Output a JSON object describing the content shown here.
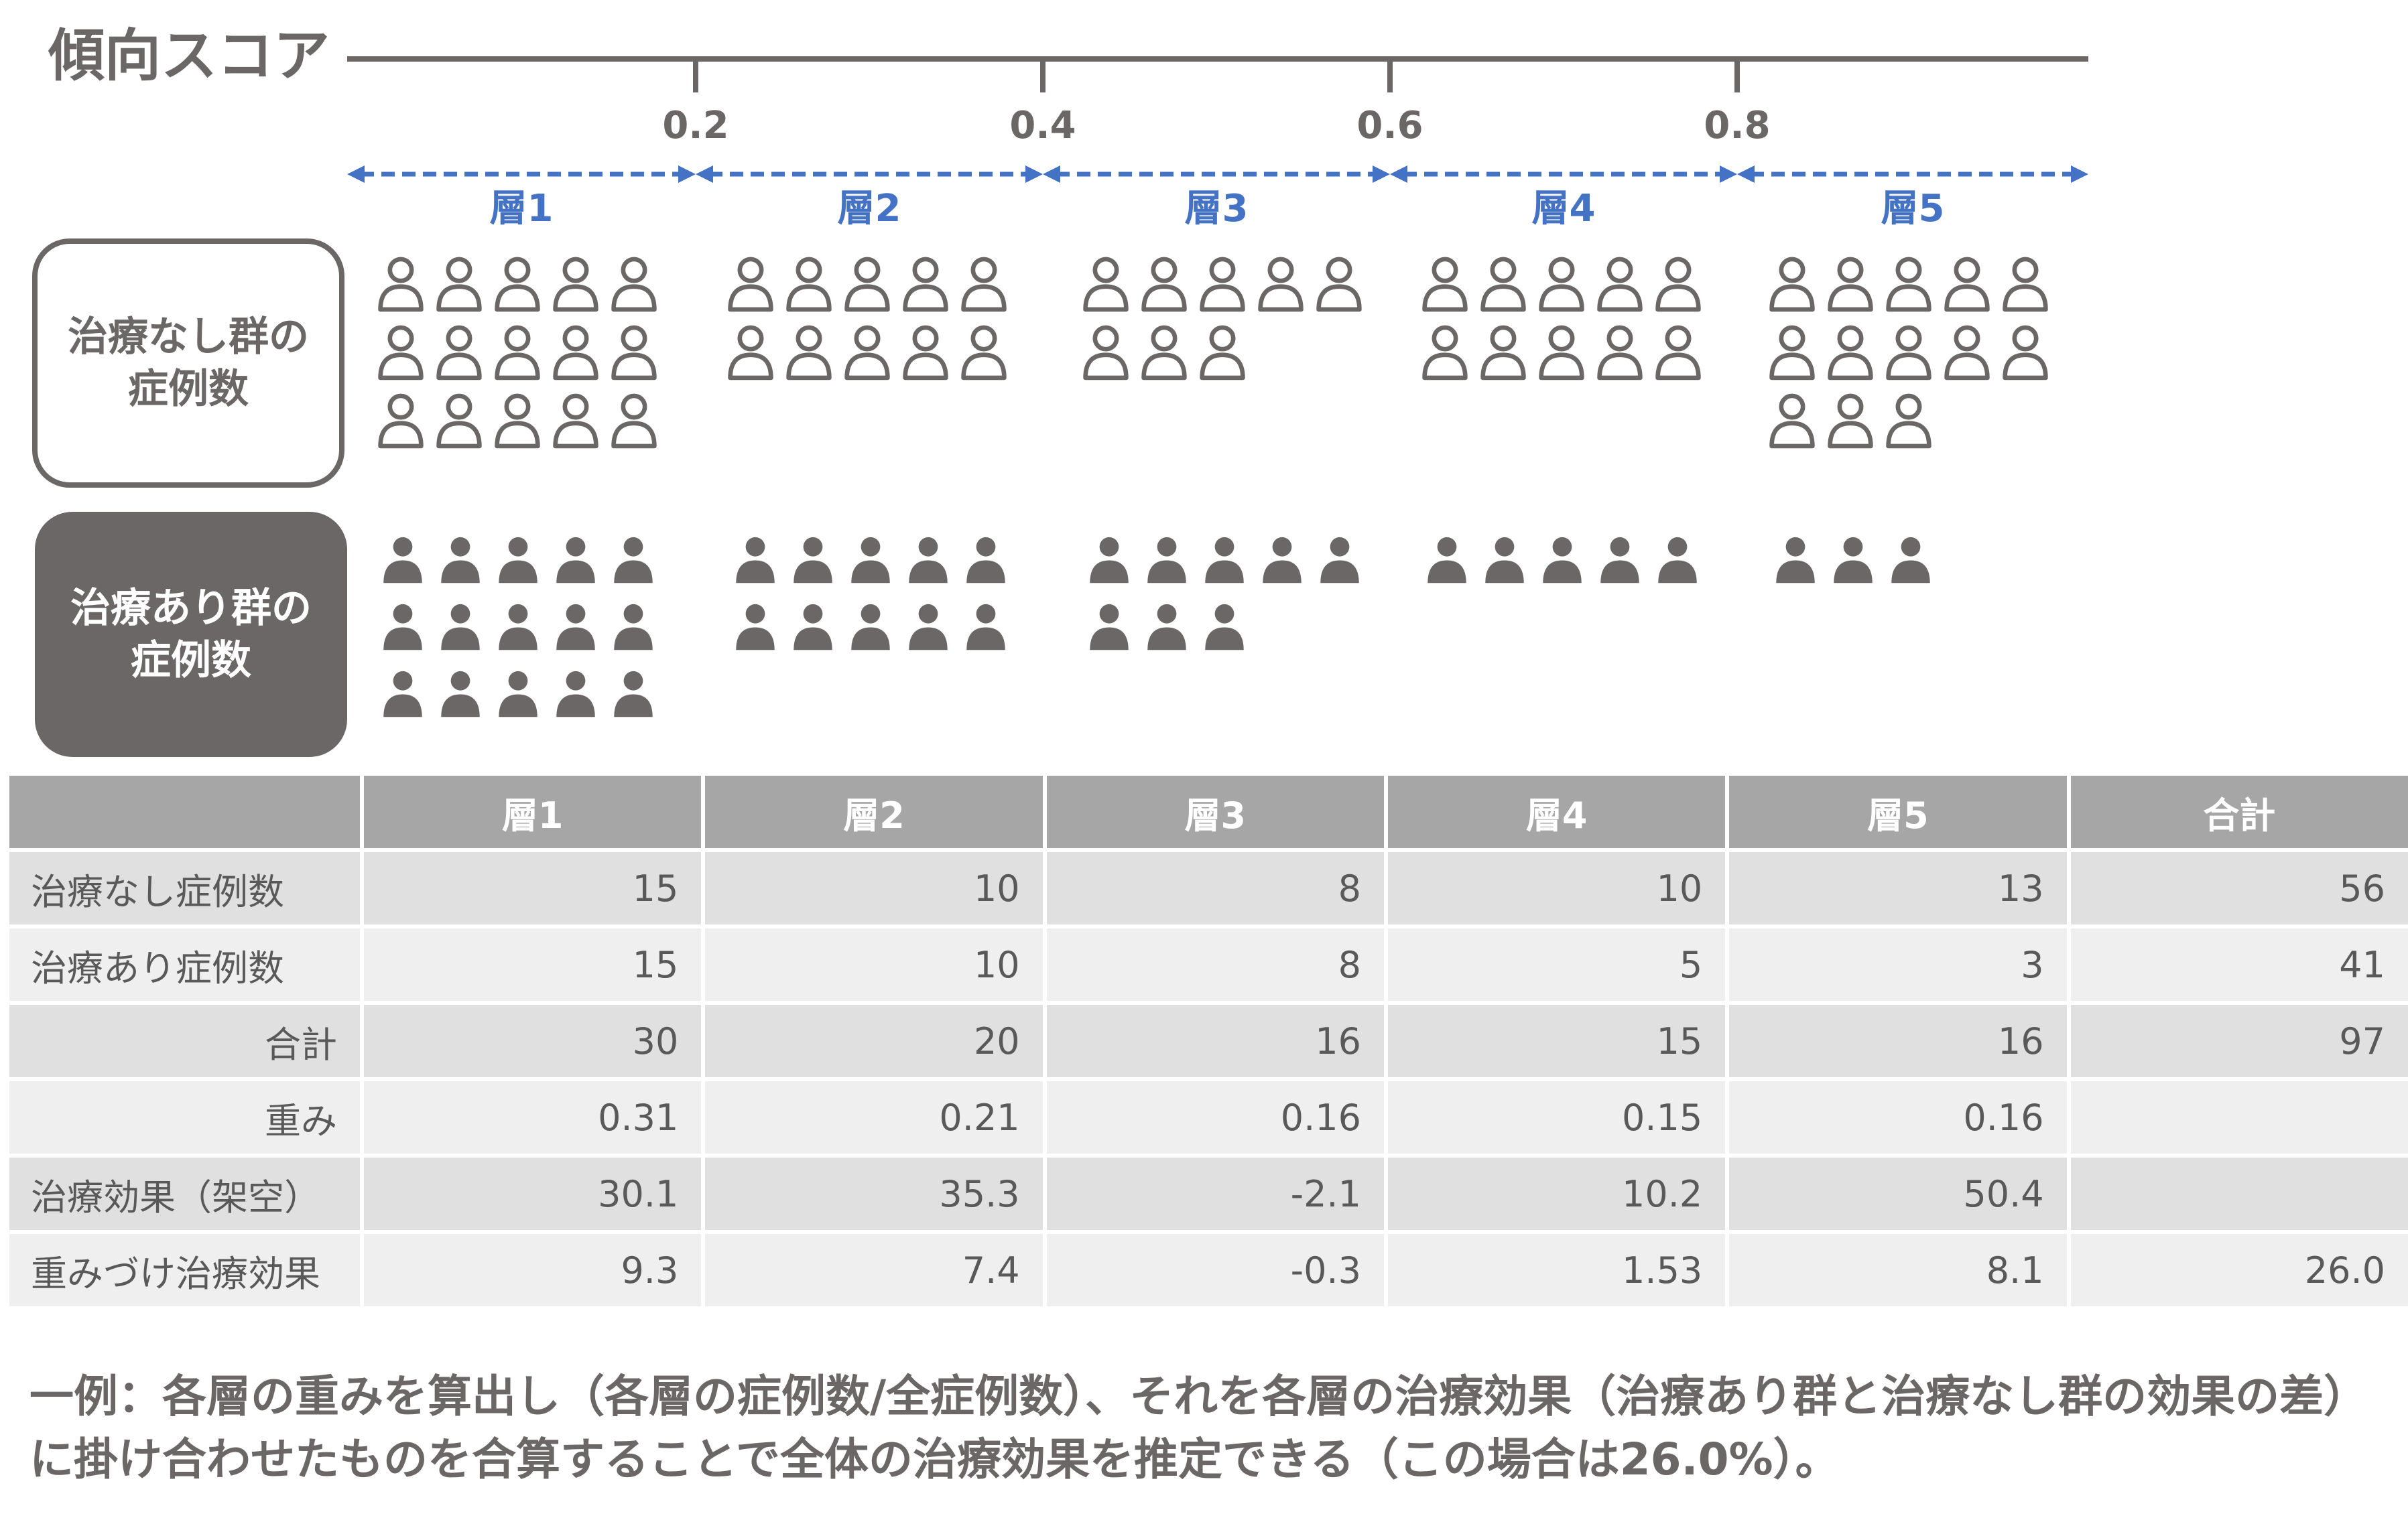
{
  "colors": {
    "gray": "#6b6767",
    "blue": "#4472c4",
    "header": "#a6a6a6",
    "row_dark": "#e0e0e0",
    "row_light": "#efefef"
  },
  "scale": {
    "title": "傾向スコア",
    "ticks": [
      "0.2",
      "0.4",
      "0.6",
      "0.8"
    ],
    "strata": [
      "層1",
      "層2",
      "層3",
      "層4",
      "層5"
    ]
  },
  "groups": {
    "untreated_label": [
      "治療なし群の",
      "症例数"
    ],
    "treated_label": [
      "治療あり群の",
      "症例数"
    ],
    "icon_names": {
      "untreated": "person-outline-icon",
      "treated": "person-filled-icon"
    }
  },
  "table": {
    "columns": [
      "",
      "層1",
      "層2",
      "層3",
      "層4",
      "層5",
      "合計"
    ],
    "rows": [
      {
        "label": "治療なし症例数",
        "values": [
          "15",
          "10",
          "8",
          "10",
          "13",
          "56"
        ]
      },
      {
        "label": "治療あり症例数",
        "values": [
          "15",
          "10",
          "8",
          "5",
          "3",
          "41"
        ]
      },
      {
        "label": "合計",
        "values": [
          "30",
          "20",
          "16",
          "15",
          "16",
          "97"
        ]
      },
      {
        "label": "重み",
        "values": [
          "0.31",
          "0.21",
          "0.16",
          "0.15",
          "0.16",
          ""
        ]
      },
      {
        "label": "治療効果（架空）",
        "values": [
          "30.1",
          "35.3",
          "-2.1",
          "10.2",
          "50.4",
          ""
        ]
      },
      {
        "label": "重みづけ治療効果",
        "values": [
          "9.3",
          "7.4",
          "-0.3",
          "1.53",
          "8.1",
          "26.0"
        ]
      }
    ]
  },
  "note": "一例：各層の重みを算出し（各層の症例数/全症例数）、それを各層の治療効果（治療あり群と治療なし群の効果の差）に掛け合わせたものを合算することで全体の治療効果を推定できる（この場合は26.0%）。"
}
